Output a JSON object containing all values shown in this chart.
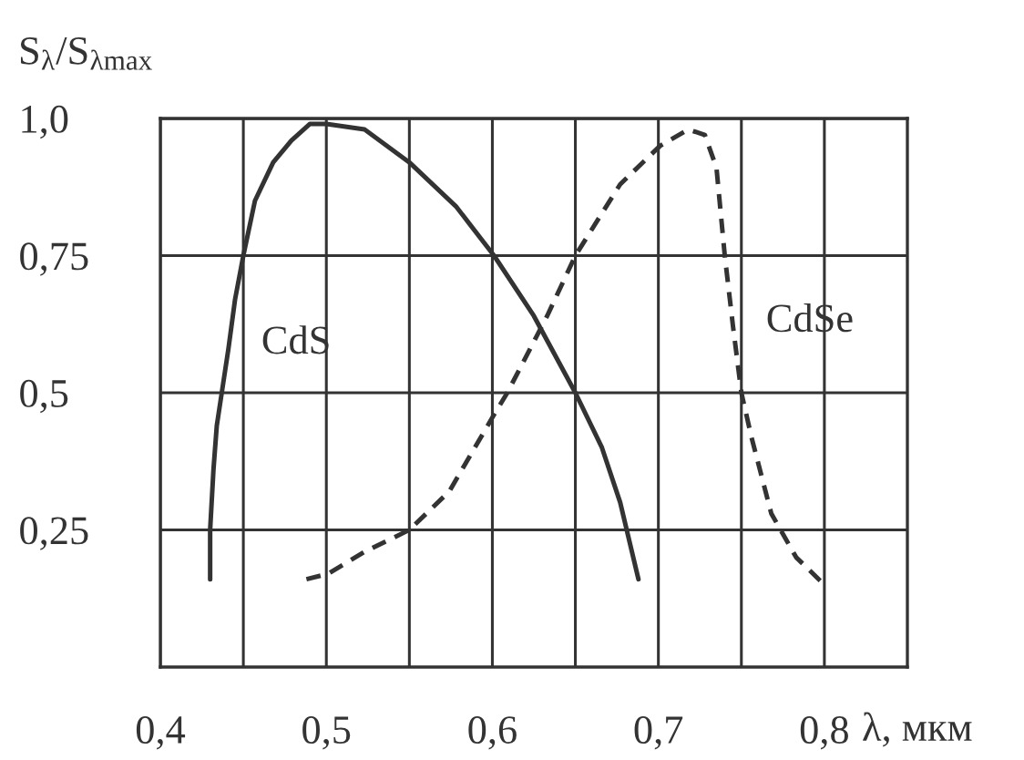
{
  "chart_data": {
    "type": "line",
    "xlabel": "λ, мкм",
    "ylabel": "S$_{λ}$/S$_{λmax}$",
    "xlim": [
      0.4,
      0.85
    ],
    "xticks": [
      {
        "value": 0.4,
        "label": "0,4"
      },
      {
        "value": 0.45,
        "label": null
      },
      {
        "value": 0.5,
        "label": "0,5"
      },
      {
        "value": 0.55,
        "label": null
      },
      {
        "value": 0.6,
        "label": "0,6"
      },
      {
        "value": 0.65,
        "label": null
      },
      {
        "value": 0.7,
        "label": "0,7"
      },
      {
        "value": 0.75,
        "label": null
      },
      {
        "value": 0.8,
        "label": "0,8"
      }
    ],
    "ylim": [
      0,
      1.0
    ],
    "yticks": [
      {
        "value": 0.25,
        "label": "0,25"
      },
      {
        "value": 0.5,
        "label": "0,5"
      },
      {
        "value": 0.75,
        "label": "0,75"
      },
      {
        "value": 1.0,
        "label": "1,0"
      }
    ],
    "grid": true,
    "series": [
      {
        "name": "CdS",
        "color": "#333333",
        "line_style": "solid",
        "x": [
          0.43,
          0.43,
          0.432,
          0.434,
          0.437,
          0.441,
          0.445,
          0.45,
          0.457,
          0.468,
          0.479,
          0.49,
          0.5,
          0.523,
          0.55,
          0.578,
          0.601,
          0.625,
          0.65,
          0.666,
          0.677,
          0.688
        ],
        "values": [
          0.16,
          0.25,
          0.36,
          0.44,
          0.5,
          0.58,
          0.67,
          0.75,
          0.85,
          0.92,
          0.96,
          0.99,
          0.99,
          0.98,
          0.92,
          0.84,
          0.75,
          0.64,
          0.5,
          0.4,
          0.3,
          0.16
        ]
      },
      {
        "name": "CdSe",
        "color": "#333333",
        "line_style": "dashed",
        "x": [
          0.488,
          0.501,
          0.523,
          0.55,
          0.574,
          0.601,
          0.609,
          0.633,
          0.65,
          0.677,
          0.701,
          0.718,
          0.728,
          0.735,
          0.74,
          0.745,
          0.75,
          0.756,
          0.768,
          0.783,
          0.8
        ],
        "values": [
          0.16,
          0.17,
          0.21,
          0.25,
          0.32,
          0.46,
          0.5,
          0.64,
          0.75,
          0.88,
          0.95,
          0.98,
          0.97,
          0.91,
          0.75,
          0.62,
          0.5,
          0.42,
          0.28,
          0.2,
          0.15
        ]
      }
    ]
  }
}
